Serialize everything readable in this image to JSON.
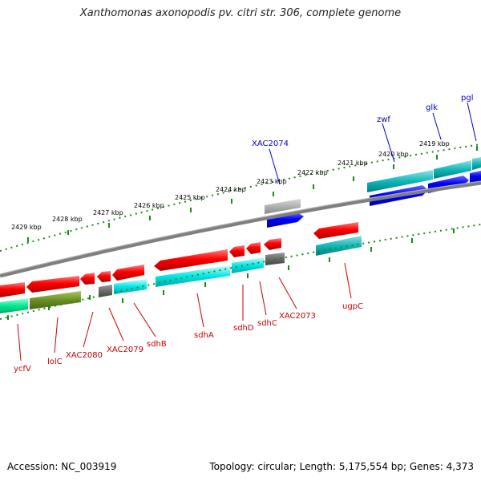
{
  "title": "Xanthomonas axonopodis pv. citri str. 306, complete genome",
  "footer": {
    "accession": "Accession: NC_003919",
    "topology": "Topology: circular; Length: 5,175,554 bp; Genes: 4,373"
  },
  "colors": {
    "forward_strand": "#0000ff",
    "reverse_strand": "#dd0000",
    "backbone": "#808080",
    "tick": "#1a8a1a"
  },
  "kbp_labels": [
    "2429 kbp",
    "2428 kbp",
    "2427 kbp",
    "2426 kbp",
    "2425 kbp",
    "2424 kbp",
    "2423 kbp",
    "2422 kbp",
    "2421 kbp",
    "2420 kbp",
    "2419 kbp"
  ],
  "forward_labels": [
    "XAC2074",
    "zwf",
    "glk",
    "pgl"
  ],
  "reverse_labels": [
    "ycfV",
    "lolC",
    "XAC2080",
    "XAC2079",
    "sdhB",
    "sdhA",
    "sdhD",
    "sdhC",
    "XAC2073",
    "ugpC"
  ]
}
